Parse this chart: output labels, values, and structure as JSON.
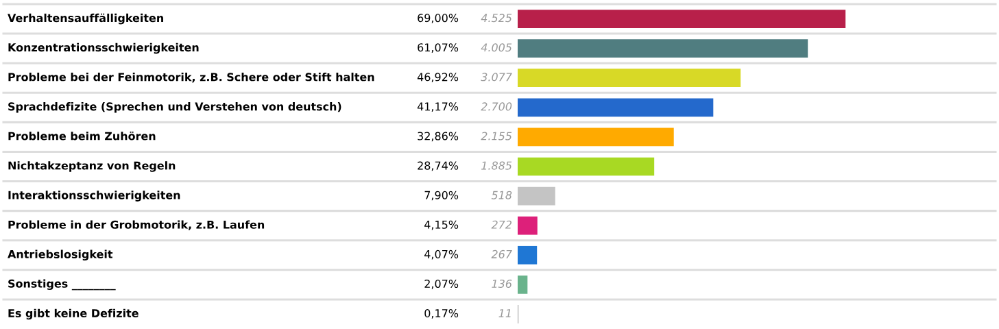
{
  "chart_data": {
    "type": "bar",
    "orientation": "horizontal",
    "categories": [
      "Verhaltensauffälligkeiten",
      "Konzentrationsschwierigkeiten",
      "Probleme bei der Feinmotorik, z.B. Schere oder Stift halten",
      "Sprachdefizite (Sprechen und Verstehen von deutsch)",
      "Probleme beim Zuhören",
      "Nichtakzeptanz von Regeln",
      "Interaktionsschwierigkeiten",
      "Probleme in der Grobmotorik, z.B. Laufen",
      "Antriebslosigkeit",
      "Sonstiges ________",
      "Es gibt keine Defizite"
    ],
    "values": [
      69.0,
      61.07,
      46.92,
      41.17,
      32.86,
      28.74,
      7.9,
      4.15,
      4.07,
      2.07,
      0.17
    ],
    "value_labels": [
      "69,00%",
      "61,07%",
      "46,92%",
      "41,17%",
      "32,86%",
      "28,74%",
      "7,90%",
      "4,15%",
      "4,07%",
      "2,07%",
      "0,17%"
    ],
    "colors": [
      "#b8204a",
      "#507d80",
      "#d8d926",
      "#2469cc",
      "#ffaa00",
      "#a8d923",
      "#c4c4c4",
      "#dd207a",
      "#1f77d4",
      "#6ab38c",
      "#aaaaaa"
    ],
    "annotations": [
      "4.525",
      "4.005",
      "3.077",
      "2.700",
      "2.155",
      "1.885",
      "518",
      "272",
      "267",
      "136",
      "11"
    ],
    "xlim": [
      0,
      100
    ],
    "grid": "y"
  }
}
